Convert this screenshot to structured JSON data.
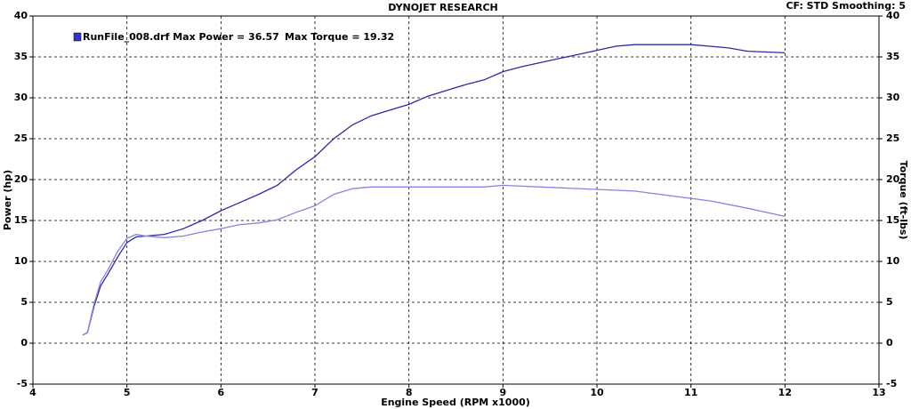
{
  "chart_data": {
    "type": "line",
    "title": "DYNOJET RESEARCH",
    "subtitle": "CF: STD  Smoothing: 5",
    "x_label": "Engine Speed (RPM x1000)",
    "y_label": "Power (hp)",
    "y2_label": "Torque (ft-lbs)",
    "annotations": [
      "RunFile_008.drf Max Power = 36.57",
      "Max Torque = 19.32"
    ],
    "legend_color": "#3333cc",
    "xlim": [
      4,
      13
    ],
    "xticks": [
      4,
      5,
      6,
      7,
      8,
      9,
      10,
      11,
      12,
      13
    ],
    "ylim": [
      -5,
      40
    ],
    "yticks": [
      -5,
      0,
      5,
      10,
      15,
      20,
      25,
      30,
      35,
      40
    ],
    "y2lim": [
      -5,
      40
    ],
    "y2ticks": [
      -5,
      0,
      5,
      10,
      15,
      20,
      25,
      30,
      35,
      40
    ],
    "grid": true,
    "series": [
      {
        "color": "#2a2aa8",
        "x": [
          4.53,
          4.58,
          4.65,
          4.72,
          4.8,
          4.9,
          5.0,
          5.1,
          5.2,
          5.4,
          5.6,
          5.8,
          6.0,
          6.2,
          6.4,
          6.6,
          6.8,
          7.0,
          7.2,
          7.4,
          7.6,
          7.8,
          8.0,
          8.2,
          8.4,
          8.6,
          8.8,
          9.0,
          9.2,
          9.4,
          9.6,
          9.8,
          10.0,
          10.2,
          10.4,
          10.6,
          10.8,
          11.0,
          11.2,
          11.4,
          11.6,
          11.8,
          12.0
        ],
        "values": [
          1.0,
          1.3,
          4.5,
          7.0,
          8.5,
          10.5,
          12.3,
          13.0,
          13.1,
          13.3,
          14.0,
          15.0,
          16.2,
          17.2,
          18.2,
          19.3,
          21.2,
          22.8,
          25.0,
          26.7,
          27.8,
          28.5,
          29.2,
          30.2,
          30.9,
          31.6,
          32.2,
          33.2,
          33.8,
          34.3,
          34.8,
          35.3,
          35.8,
          36.3,
          36.5,
          36.5,
          36.5,
          36.5,
          36.3,
          36.1,
          35.7,
          35.6,
          35.5
        ]
      },
      {
        "color": "#8484e0",
        "axis": "y2",
        "x": [
          4.53,
          4.58,
          4.65,
          4.72,
          4.8,
          4.9,
          5.0,
          5.1,
          5.2,
          5.4,
          5.6,
          5.8,
          6.0,
          6.2,
          6.4,
          6.6,
          6.8,
          7.0,
          7.2,
          7.4,
          7.6,
          7.8,
          8.0,
          8.4,
          8.8,
          9.0,
          9.2,
          9.6,
          10.0,
          10.4,
          10.8,
          11.2,
          11.6,
          12.0
        ],
        "values": [
          1.0,
          1.3,
          4.8,
          7.5,
          9.0,
          11.2,
          12.8,
          13.3,
          13.1,
          12.9,
          13.1,
          13.6,
          14.0,
          14.5,
          14.7,
          15.1,
          16.0,
          16.8,
          18.2,
          18.9,
          19.1,
          19.1,
          19.1,
          19.1,
          19.1,
          19.3,
          19.2,
          19.0,
          18.8,
          18.6,
          18.0,
          17.4,
          16.5,
          15.5
        ]
      }
    ]
  }
}
